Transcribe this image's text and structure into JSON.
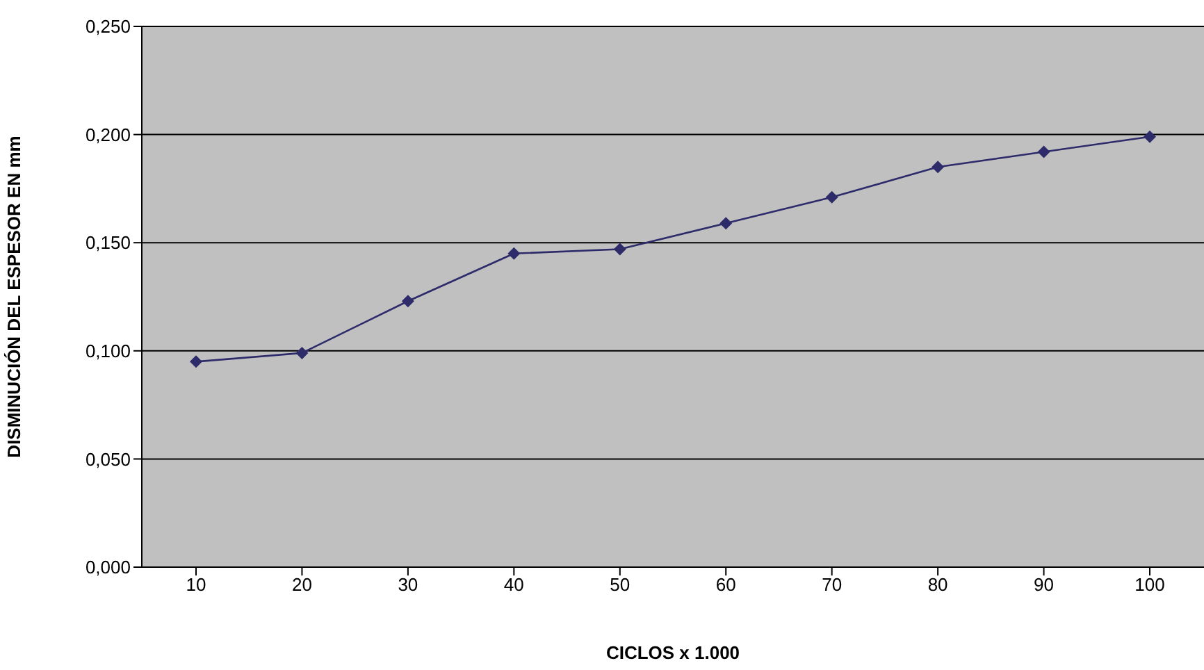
{
  "chart_data": {
    "type": "line",
    "xlabel": "CICLOS x 1.000",
    "ylabel": "DISMINUCIÓN DEL ESPESOR EN mm",
    "categories": [
      "10",
      "20",
      "30",
      "40",
      "50",
      "60",
      "70",
      "80",
      "90",
      "100"
    ],
    "series": [
      {
        "color": "#2e2b6b",
        "values": [
          0.095,
          0.099,
          0.123,
          0.145,
          0.147,
          0.159,
          0.171,
          0.185,
          0.192,
          0.199
        ]
      }
    ],
    "ylim": [
      0,
      0.25
    ],
    "yticks": [
      {
        "value": 0,
        "label": "0,000"
      },
      {
        "value": 0.05,
        "label": "0,050"
      },
      {
        "value": 0.1,
        "label": "0,100"
      },
      {
        "value": 0.15,
        "label": "0,150"
      },
      {
        "value": 0.2,
        "label": "0,200"
      },
      {
        "value": 0.25,
        "label": "0,250"
      }
    ],
    "grid": "y",
    "marker": "diamond",
    "line_style": "solid"
  }
}
